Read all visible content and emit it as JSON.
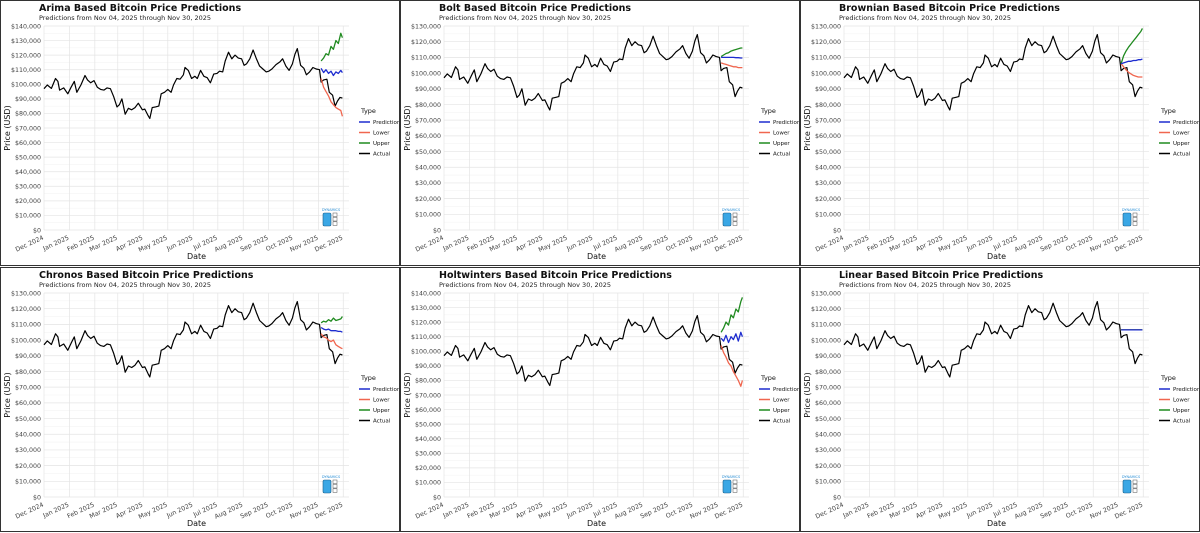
{
  "legend_title": "Type",
  "legend": [
    {
      "name": "Prediction",
      "color": "#1d2ccf"
    },
    {
      "name": "Lower",
      "color": "#f0664f"
    },
    {
      "name": "Upper",
      "color": "#1f8a1f"
    },
    {
      "name": "Actual",
      "color": "#000000"
    }
  ],
  "watermark_text": "DYNAMICS",
  "axis": {
    "xlabel": "Date",
    "ylabel": "Price (USD)",
    "x_ticks": [
      "Dec 2024",
      "Jan 2025",
      "Feb 2025",
      "Mar 2025",
      "Apr 2025",
      "May 2025",
      "Jun 2025",
      "Jul 2025",
      "Aug 2025",
      "Sep 2025",
      "Oct 2025",
      "Nov 2025",
      "Dec 2025"
    ],
    "xlim": [
      "2024-12-01",
      "2025-12-08"
    ],
    "grid": true,
    "legend_position": "right"
  },
  "actual_series": {
    "name": "Actual",
    "points": [
      [
        "2024-12-01",
        97000
      ],
      [
        "2024-12-05",
        99500
      ],
      [
        "2024-12-10",
        97200
      ],
      [
        "2024-12-15",
        104000
      ],
      [
        "2024-12-18",
        102000
      ],
      [
        "2024-12-20",
        96000
      ],
      [
        "2024-12-25",
        97500
      ],
      [
        "2024-12-30",
        93500
      ],
      [
        "2025-01-03",
        98000
      ],
      [
        "2025-01-07",
        102000
      ],
      [
        "2025-01-10",
        94500
      ],
      [
        "2025-01-15",
        99500
      ],
      [
        "2025-01-20",
        106000
      ],
      [
        "2025-01-23",
        103000
      ],
      [
        "2025-01-27",
        101000
      ],
      [
        "2025-01-31",
        102500
      ],
      [
        "2025-02-04",
        98000
      ],
      [
        "2025-02-08",
        96500
      ],
      [
        "2025-02-12",
        96000
      ],
      [
        "2025-02-16",
        97500
      ],
      [
        "2025-02-20",
        97000
      ],
      [
        "2025-02-24",
        91500
      ],
      [
        "2025-02-28",
        84500
      ],
      [
        "2025-03-03",
        86000
      ],
      [
        "2025-03-06",
        90000
      ],
      [
        "2025-03-10",
        79500
      ],
      [
        "2025-03-14",
        83500
      ],
      [
        "2025-03-18",
        82500
      ],
      [
        "2025-03-22",
        84000
      ],
      [
        "2025-03-26",
        87000
      ],
      [
        "2025-03-31",
        82500
      ],
      [
        "2025-04-03",
        83000
      ],
      [
        "2025-04-07",
        78500
      ],
      [
        "2025-04-09",
        76500
      ],
      [
        "2025-04-12",
        84000
      ],
      [
        "2025-04-16",
        84500
      ],
      [
        "2025-04-20",
        85000
      ],
      [
        "2025-04-23",
        93500
      ],
      [
        "2025-04-27",
        94500
      ],
      [
        "2025-05-01",
        96500
      ],
      [
        "2025-05-05",
        94500
      ],
      [
        "2025-05-08",
        99500
      ],
      [
        "2025-05-12",
        104000
      ],
      [
        "2025-05-16",
        103500
      ],
      [
        "2025-05-20",
        106500
      ],
      [
        "2025-05-22",
        111500
      ],
      [
        "2025-05-26",
        109500
      ],
      [
        "2025-05-30",
        104000
      ],
      [
        "2025-06-03",
        105500
      ],
      [
        "2025-06-06",
        104000
      ],
      [
        "2025-06-10",
        109500
      ],
      [
        "2025-06-14",
        105500
      ],
      [
        "2025-06-18",
        104500
      ],
      [
        "2025-06-22",
        101000
      ],
      [
        "2025-06-26",
        107000
      ],
      [
        "2025-06-30",
        107500
      ],
      [
        "2025-07-03",
        109000
      ],
      [
        "2025-07-07",
        108500
      ],
      [
        "2025-07-10",
        116000
      ],
      [
        "2025-07-14",
        122000
      ],
      [
        "2025-07-18",
        117500
      ],
      [
        "2025-07-22",
        120000
      ],
      [
        "2025-07-26",
        118000
      ],
      [
        "2025-07-30",
        117500
      ],
      [
        "2025-08-02",
        113000
      ],
      [
        "2025-08-05",
        114000
      ],
      [
        "2025-08-09",
        117500
      ],
      [
        "2025-08-13",
        123500
      ],
      [
        "2025-08-17",
        117500
      ],
      [
        "2025-08-21",
        112500
      ],
      [
        "2025-08-25",
        110500
      ],
      [
        "2025-08-29",
        108500
      ],
      [
        "2025-09-01",
        109000
      ],
      [
        "2025-09-05",
        110500
      ],
      [
        "2025-09-10",
        113500
      ],
      [
        "2025-09-15",
        115500
      ],
      [
        "2025-09-18",
        117500
      ],
      [
        "2025-09-22",
        112500
      ],
      [
        "2025-09-26",
        109500
      ],
      [
        "2025-09-30",
        114000
      ],
      [
        "2025-10-03",
        120500
      ],
      [
        "2025-10-06",
        124500
      ],
      [
        "2025-10-10",
        113000
      ],
      [
        "2025-10-14",
        111000
      ],
      [
        "2025-10-17",
        106500
      ],
      [
        "2025-10-21",
        108500
      ],
      [
        "2025-10-25",
        111500
      ],
      [
        "2025-10-29",
        110500
      ],
      [
        "2025-11-02",
        110000
      ],
      [
        "2025-11-04",
        101500
      ],
      [
        "2025-11-07",
        103000
      ],
      [
        "2025-11-11",
        103500
      ],
      [
        "2025-11-14",
        94500
      ],
      [
        "2025-11-18",
        92500
      ],
      [
        "2025-11-21",
        85000
      ],
      [
        "2025-11-24",
        88500
      ],
      [
        "2025-11-27",
        91000
      ],
      [
        "2025-11-30",
        90500
      ]
    ]
  },
  "panels": [
    {
      "title": "Arima Based Bitcoin Price Predictions",
      "subtitle": "Predictions from Nov 04, 2025 through Nov 30, 2025",
      "y_ticks": [
        "$0",
        "$10,000",
        "$20,000",
        "$30,000",
        "$40,000",
        "$50,000",
        "$60,000",
        "$70,000",
        "$80,000",
        "$90,000",
        "$100,000",
        "$110,000",
        "$120,000",
        "$130,000",
        "$140,000"
      ],
      "ylim": [
        0,
        140000
      ],
      "chart_data": {
        "type": "line",
        "x": [
          "2025-11-04",
          "2025-11-07",
          "2025-11-10",
          "2025-11-13",
          "2025-11-16",
          "2025-11-19",
          "2025-11-22",
          "2025-11-25",
          "2025-11-28",
          "2025-11-30"
        ],
        "series": [
          {
            "name": "Prediction",
            "values": [
              111000,
              108000,
              110000,
              107500,
              109000,
              106000,
              108500,
              107500,
              109500,
              108000
            ]
          },
          {
            "name": "Lower",
            "values": [
              104000,
              98000,
              95000,
              92000,
              88000,
              86000,
              84000,
              83000,
              82000,
              78000
            ]
          },
          {
            "name": "Upper",
            "values": [
              116000,
              118000,
              121000,
              120000,
              126000,
              124000,
              130000,
              128000,
              135000,
              132000
            ]
          }
        ]
      }
    },
    {
      "title": "Bolt Based Bitcoin Price Predictions",
      "subtitle": "Predictions from Nov 04, 2025 through Nov 30, 2025",
      "y_ticks": [
        "$0",
        "$10,000",
        "$20,000",
        "$30,000",
        "$40,000",
        "$50,000",
        "$60,000",
        "$70,000",
        "$80,000",
        "$90,000",
        "$100,000",
        "$110,000",
        "$120,000",
        "$130,000"
      ],
      "ylim": [
        0,
        130000
      ],
      "chart_data": {
        "type": "line",
        "x": [
          "2025-11-04",
          "2025-11-07",
          "2025-11-10",
          "2025-11-13",
          "2025-11-16",
          "2025-11-19",
          "2025-11-22",
          "2025-11-25",
          "2025-11-28",
          "2025-11-30"
        ],
        "series": [
          {
            "name": "Prediction",
            "values": [
              110000,
              110000,
              110000,
              110000,
              110000,
              110000,
              109800,
              109800,
              109600,
              109600
            ]
          },
          {
            "name": "Lower",
            "values": [
              106500,
              106000,
              105500,
              105000,
              104500,
              104000,
              104000,
              103500,
              103500,
              103500
            ]
          },
          {
            "name": "Upper",
            "values": [
              110500,
              111500,
              112500,
              113000,
              114000,
              114500,
              115000,
              115500,
              116000,
              116000
            ]
          }
        ]
      }
    },
    {
      "title": "Brownian Based Bitcoin Price Predictions",
      "subtitle": "Predictions from Nov 04, 2025 through Nov 30, 2025",
      "y_ticks": [
        "$0",
        "$10,000",
        "$20,000",
        "$30,000",
        "$40,000",
        "$50,000",
        "$60,000",
        "$70,000",
        "$80,000",
        "$90,000",
        "$100,000",
        "$110,000",
        "$120,000",
        "$130,000"
      ],
      "ylim": [
        0,
        130000
      ],
      "chart_data": {
        "type": "line",
        "x": [
          "2025-11-04",
          "2025-11-07",
          "2025-11-10",
          "2025-11-13",
          "2025-11-16",
          "2025-11-19",
          "2025-11-22",
          "2025-11-25",
          "2025-11-28",
          "2025-11-30"
        ],
        "series": [
          {
            "name": "Prediction",
            "values": [
              106000,
              106500,
              107000,
              107500,
              107500,
              108000,
              108000,
              108500,
              108500,
              109000
            ]
          },
          {
            "name": "Lower",
            "values": [
              106000,
              104000,
              102000,
              100500,
              99500,
              98500,
              98000,
              97500,
              97500,
              97500
            ]
          },
          {
            "name": "Upper",
            "values": [
              106000,
              111000,
              114000,
              116500,
              118500,
              120500,
              122500,
              124500,
              126500,
              128500
            ]
          }
        ]
      }
    },
    {
      "title": "Chronos Based Bitcoin Price Predictions",
      "subtitle": "Predictions from Nov 04, 2025 through Nov 30, 2025",
      "y_ticks": [
        "$0",
        "$10,000",
        "$20,000",
        "$30,000",
        "$40,000",
        "$50,000",
        "$60,000",
        "$70,000",
        "$80,000",
        "$90,000",
        "$100,000",
        "$110,000",
        "$120,000",
        "$130,000"
      ],
      "ylim": [
        0,
        130000
      ],
      "chart_data": {
        "type": "line",
        "x": [
          "2025-11-04",
          "2025-11-07",
          "2025-11-10",
          "2025-11-13",
          "2025-11-16",
          "2025-11-19",
          "2025-11-22",
          "2025-11-25",
          "2025-11-28",
          "2025-11-30"
        ],
        "series": [
          {
            "name": "Prediction",
            "values": [
              108000,
              107000,
              106500,
              107000,
              106000,
              106000,
              106000,
              105500,
              105500,
              105000
            ]
          },
          {
            "name": "Lower",
            "values": [
              104000,
              102000,
              101500,
              100000,
              99000,
              100000,
              97000,
              96000,
              95000,
              94500
            ]
          },
          {
            "name": "Upper",
            "values": [
              111000,
              112000,
              111500,
              113000,
              112000,
              114000,
              112500,
              113000,
              113500,
              115000
            ]
          }
        ]
      }
    },
    {
      "title": "Holtwinters Based Bitcoin Price Predictions",
      "subtitle": "Predictions from Nov 04, 2025 through Nov 30, 2025",
      "y_ticks": [
        "$0",
        "$10,000",
        "$20,000",
        "$30,000",
        "$40,000",
        "$50,000",
        "$60,000",
        "$70,000",
        "$80,000",
        "$90,000",
        "$100,000",
        "$110,000",
        "$120,000",
        "$130,000",
        "$140,000"
      ],
      "ylim": [
        0,
        140000
      ],
      "chart_data": {
        "type": "line",
        "x": [
          "2025-11-04",
          "2025-11-07",
          "2025-11-10",
          "2025-11-13",
          "2025-11-16",
          "2025-11-19",
          "2025-11-22",
          "2025-11-25",
          "2025-11-28",
          "2025-11-30"
        ],
        "series": [
          {
            "name": "Prediction",
            "values": [
              109000,
              107000,
              111000,
              106000,
              110000,
              108000,
              112000,
              107000,
              113000,
              110000
            ]
          },
          {
            "name": "Lower",
            "values": [
              104000,
              99000,
              96000,
              92000,
              90000,
              86000,
              83000,
              80000,
              76000,
              80000
            ]
          },
          {
            "name": "Upper",
            "values": [
              113000,
              116000,
              120000,
              118000,
              125000,
              123000,
              129000,
              127000,
              134000,
              137000
            ]
          }
        ]
      }
    },
    {
      "title": "Linear Based Bitcoin Price Predictions",
      "subtitle": "Predictions from Nov 04, 2025 through Nov 30, 2025",
      "y_ticks": [
        "$0",
        "$10,000",
        "$20,000",
        "$30,000",
        "$40,000",
        "$50,000",
        "$60,000",
        "$70,000",
        "$80,000",
        "$90,000",
        "$100,000",
        "$110,000",
        "$120,000",
        "$130,000"
      ],
      "ylim": [
        0,
        130000
      ],
      "chart_data": {
        "type": "line",
        "x": [
          "2025-11-04",
          "2025-11-30"
        ],
        "series": [
          {
            "name": "Prediction",
            "values": [
              106500,
              106500
            ]
          },
          {
            "name": "Lower",
            "values": [
              106500,
              106500
            ]
          },
          {
            "name": "Upper",
            "values": [
              106500,
              106500
            ]
          }
        ]
      }
    }
  ]
}
